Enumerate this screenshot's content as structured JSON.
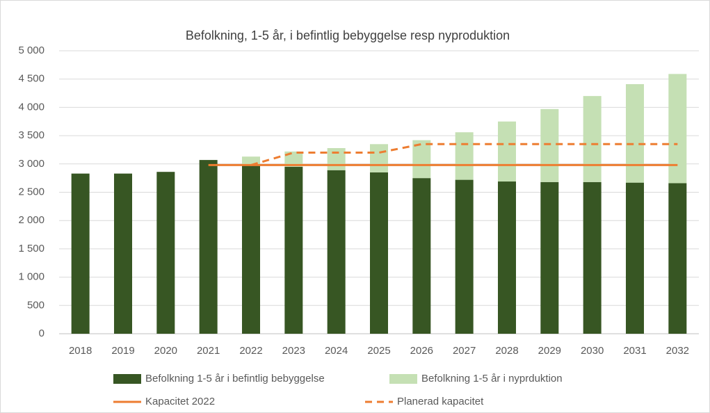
{
  "chart_data": {
    "type": "bar",
    "title": "Befolkning, 1-5 år, i befintlig bebyggelse resp nyproduktion",
    "categories": [
      "2018",
      "2019",
      "2020",
      "2021",
      "2022",
      "2023",
      "2024",
      "2025",
      "2026",
      "2027",
      "2028",
      "2029",
      "2030",
      "2031",
      "2032"
    ],
    "series": [
      {
        "name": "Befolkning 1-5 år i befintlig bebyggelse",
        "type": "bar",
        "color": "#375623",
        "values": [
          2830,
          2830,
          2860,
          3070,
          2970,
          2950,
          2890,
          2850,
          2750,
          2720,
          2690,
          2680,
          2680,
          2670,
          2660
        ]
      },
      {
        "name": "Befolkning 1-5 år i nyprduktion",
        "type": "bar",
        "color": "#c5e0b4",
        "values": [
          null,
          null,
          null,
          null,
          160,
          270,
          390,
          500,
          670,
          840,
          1060,
          1290,
          1520,
          1740,
          1930
        ]
      },
      {
        "name": "Kapacitet 2022",
        "type": "line",
        "color": "#ed7d31",
        "dashed": false,
        "values": [
          null,
          null,
          null,
          2980,
          2980,
          2980,
          2980,
          2980,
          2980,
          2980,
          2980,
          2980,
          2980,
          2980,
          2980
        ]
      },
      {
        "name": "Planerad kapacitet",
        "type": "line",
        "color": "#ed7d31",
        "dashed": true,
        "values": [
          null,
          null,
          null,
          null,
          2980,
          3200,
          3200,
          3200,
          3350,
          3350,
          3350,
          3350,
          3350,
          3350,
          3350
        ]
      }
    ],
    "stacked": true,
    "ylim": [
      0,
      5000
    ],
    "yticks": [
      0,
      500,
      {
        "value": 1000,
        "label": "1 000"
      },
      {
        "value": 1500,
        "label": "1 500"
      },
      {
        "value": 2000,
        "label": "2 000"
      },
      {
        "value": 2500,
        "label": "2 500"
      },
      {
        "value": 3000,
        "label": "3 000"
      },
      {
        "value": 3500,
        "label": "3 500"
      },
      {
        "value": 4000,
        "label": "4 000"
      },
      {
        "value": 4500,
        "label": "4 500"
      },
      {
        "value": 5000,
        "label": "5 000"
      }
    ],
    "grid": true,
    "legend": "bottom"
  }
}
